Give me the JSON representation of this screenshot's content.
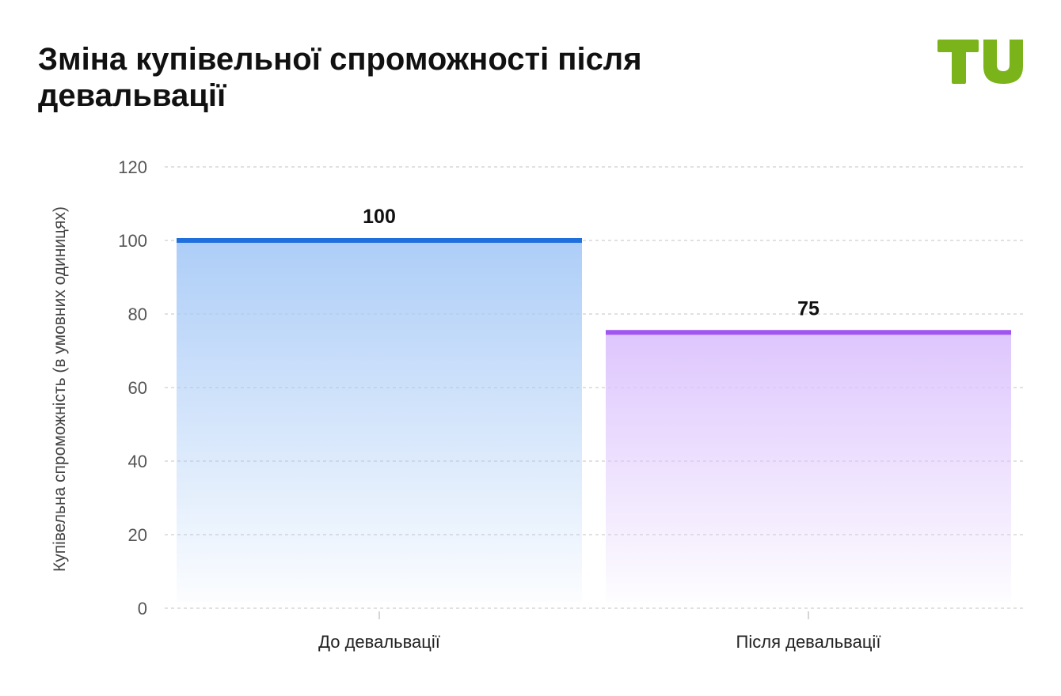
{
  "header": {
    "title": "Зміна купівельної спроможності після девальвації"
  },
  "logo": {
    "icon": "tu-logo-icon",
    "color": "#7bb31a"
  },
  "chart_data": {
    "type": "bar",
    "title": "Зміна купівельної спроможності після девальвації",
    "xlabel": "",
    "ylabel": "Купівельна спроможність (в умовних одиницях)",
    "categories": [
      "До девальвації",
      "Після девальвації"
    ],
    "values": [
      100,
      75
    ],
    "data_labels": [
      "100",
      "75"
    ],
    "ylim": [
      0,
      120
    ],
    "yticks": [
      0,
      20,
      40,
      60,
      80,
      100,
      120
    ],
    "grid": true,
    "legend": "none",
    "colors": [
      {
        "line": "#1f6fdc",
        "fill": "#a9cbf7"
      },
      {
        "line": "#a055f0",
        "fill": "#dcc3fd"
      }
    ]
  }
}
